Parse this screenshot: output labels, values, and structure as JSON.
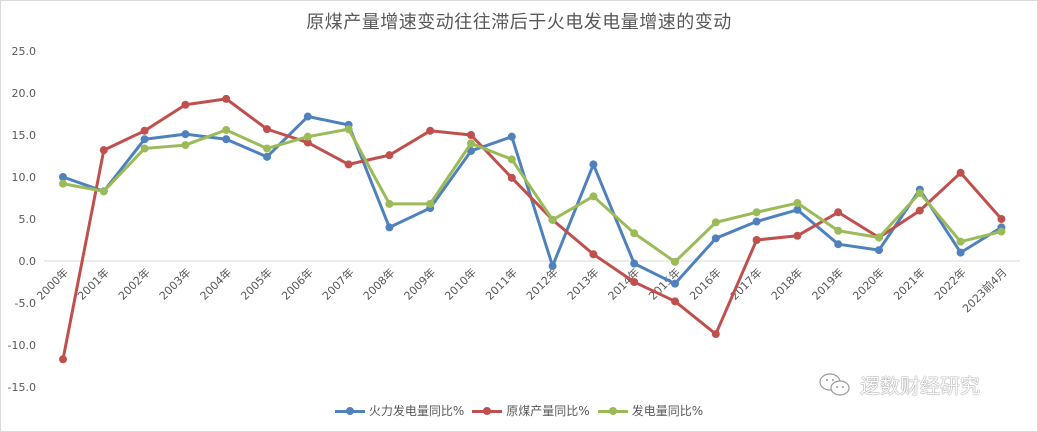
{
  "chart_data": {
    "type": "line",
    "title": "原煤产量增速变动往往滞后于火电发电量增速的变动",
    "xlabel": "",
    "ylabel": "",
    "ylim": [
      -15.0,
      25.0
    ],
    "yticks": [
      "25.0",
      "20.0",
      "15.0",
      "10.0",
      "5.0",
      "0.0",
      "-5.0",
      "-10.0",
      "-15.0"
    ],
    "grid": false,
    "legend_position": "bottom",
    "categories": [
      "2000年",
      "2001年",
      "2002年",
      "2003年",
      "2004年",
      "2005年",
      "2006年",
      "2007年",
      "2008年",
      "2009年",
      "2010年",
      "2011年",
      "2012年",
      "2013年",
      "2014年",
      "2015年",
      "2016年",
      "2017年",
      "2018年",
      "2019年",
      "2020年",
      "2021年",
      "2022年",
      "2023前4月"
    ],
    "series": [
      {
        "name": "火力发电量同比%",
        "color": "#4f81bd",
        "values": [
          10.0,
          8.3,
          14.5,
          15.1,
          14.5,
          12.4,
          17.2,
          16.2,
          4.0,
          6.3,
          13.1,
          14.8,
          -0.6,
          11.5,
          -0.3,
          -2.7,
          2.7,
          4.7,
          6.1,
          2.0,
          1.3,
          8.5,
          1.0,
          4.0
        ]
      },
      {
        "name": "原煤产量同比%",
        "color": "#c0504d",
        "values": [
          -11.7,
          13.2,
          15.5,
          18.6,
          19.3,
          15.7,
          14.1,
          11.5,
          12.6,
          15.5,
          15.0,
          9.9,
          4.9,
          0.8,
          -2.5,
          -4.8,
          -8.7,
          2.5,
          3.0,
          5.8,
          2.8,
          6.0,
          10.5,
          5.0
        ]
      },
      {
        "name": "发电量同比%",
        "color": "#9bbb59",
        "values": [
          9.2,
          8.3,
          13.4,
          13.8,
          15.6,
          13.4,
          14.8,
          15.7,
          6.8,
          6.8,
          14.0,
          12.1,
          4.9,
          7.7,
          3.3,
          -0.1,
          4.6,
          5.8,
          6.9,
          3.6,
          2.8,
          8.1,
          2.3,
          3.5
        ]
      }
    ]
  },
  "watermark": {
    "icon": "wechat-icon",
    "text": "逻数财经研究"
  }
}
